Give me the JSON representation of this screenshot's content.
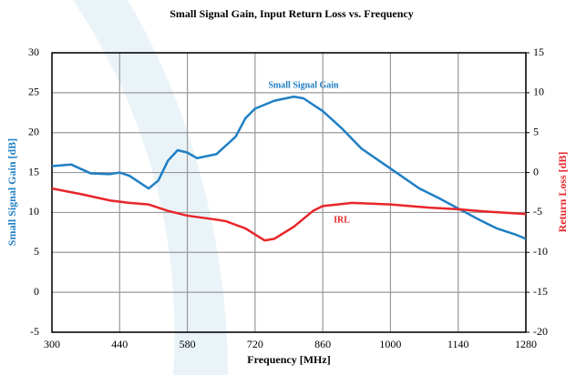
{
  "chart_data": {
    "type": "line",
    "title": "Small Signal Gain, Input Return Loss vs. Frequency",
    "x_label": "Frequency [MHz]",
    "y_label": "Small Signal Gain [dB]",
    "y2_label": "Return Loss [dB]",
    "xlim": [
      300,
      1280
    ],
    "xticks": [
      300,
      440,
      580,
      720,
      860,
      1000,
      1140,
      1280
    ],
    "ylim": [
      -5,
      30
    ],
    "yticks": [
      -5,
      0,
      5,
      10,
      15,
      20,
      25,
      30
    ],
    "y2lim": [
      -20,
      15
    ],
    "y2ticks": [
      -20,
      -15,
      -10,
      -5,
      0,
      5,
      10,
      15
    ],
    "grid": true,
    "annotations": [
      {
        "text": "Small Signal Gain",
        "series": 0
      },
      {
        "text": "IRL",
        "series": 1
      }
    ],
    "series": [
      {
        "name": "Small Signal Gain",
        "color": "#1f7fc4",
        "axis": "y",
        "x": [
          300,
          340,
          380,
          420,
          440,
          460,
          500,
          520,
          540,
          560,
          580,
          600,
          640,
          680,
          700,
          720,
          760,
          800,
          820,
          860,
          900,
          940,
          1000,
          1060,
          1100,
          1140,
          1180,
          1220,
          1260,
          1280
        ],
        "values": [
          15.8,
          16.0,
          14.9,
          14.8,
          15.0,
          14.6,
          13.0,
          14.0,
          16.5,
          17.8,
          17.5,
          16.8,
          17.3,
          19.5,
          21.8,
          23.0,
          24.0,
          24.5,
          24.3,
          22.7,
          20.5,
          18.0,
          15.5,
          13.0,
          11.8,
          10.5,
          9.2,
          8.0,
          7.2,
          6.7
        ]
      },
      {
        "name": "IRL",
        "color": "#e8262a",
        "axis": "y2",
        "x": [
          300,
          360,
          420,
          460,
          500,
          540,
          580,
          640,
          660,
          700,
          740,
          760,
          800,
          840,
          860,
          920,
          1000,
          1080,
          1140,
          1200,
          1280
        ],
        "values": [
          -2,
          -2.7,
          -3.5,
          -3.8,
          -4,
          -4.8,
          -5.4,
          -5.9,
          -6.1,
          -7,
          -8.5,
          -8.3,
          -6.8,
          -4.8,
          -4.2,
          -3.8,
          -4,
          -4.4,
          -4.6,
          -4.9,
          -5.2
        ]
      }
    ]
  }
}
